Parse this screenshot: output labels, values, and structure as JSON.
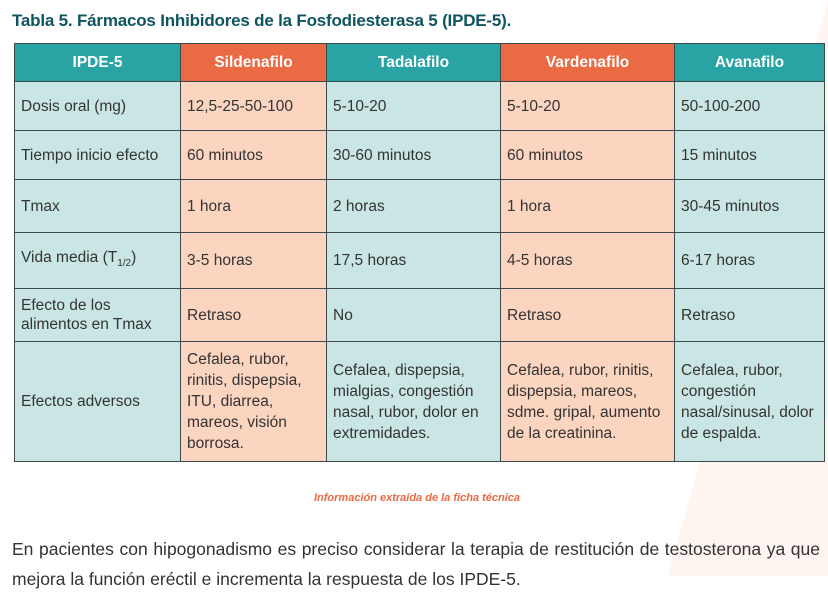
{
  "title": "Tabla 5. Fármacos Inhibidores de la Fosfodiesterasa 5 (IPDE-5).",
  "table": {
    "headers": [
      "IPDE-5",
      "Sildenafilo",
      "Tadalafilo",
      "Vardenafilo",
      "Avanafilo"
    ],
    "rows": [
      {
        "label": "Dosis oral (mg)",
        "values": [
          "12,5-25-50-100",
          "5-10-20",
          "5-10-20",
          "50-100-200"
        ]
      },
      {
        "label": "Tiempo inicio efecto",
        "values": [
          "60 minutos",
          "30-60 minutos",
          "60 minutos",
          "15 minutos"
        ]
      },
      {
        "label": "Tmax",
        "values": [
          "1 hora",
          "2 horas",
          "1 hora",
          "30-45 minutos"
        ]
      },
      {
        "label_main": "Vida media (T",
        "label_sub": "1/2",
        "label_end": ")",
        "values": [
          "3-5 horas",
          "17,5 horas",
          "4-5 horas",
          "6-17 horas"
        ]
      },
      {
        "label": "Efecto de los alimentos en Tmax",
        "values": [
          "Retraso",
          "No",
          "Retraso",
          "Retraso"
        ]
      },
      {
        "label": "Efectos adversos",
        "values": [
          "Cefalea, rubor, rinitis, dispepsia, ITU, diarrea, mareos, visión borrosa.",
          "Cefalea, dispepsia, mialgias, congestión nasal, rubor, dolor en extremidades.",
          "Cefalea, rubor, rinitis, dispepsia, mareos, sdme. gripal, aumento de la creatinina.",
          "Cefalea, rubor, congestión nasal/sinusal, dolor de espalda."
        ]
      }
    ]
  },
  "source_note": "Información extraída de la ficha técnica",
  "paragraph": "En pacientes con hipogonadismo es preciso considerar la terapia de restitución de testosterona ya que mejora la función eréctil e incrementa la respuesta de los IPDE-5.",
  "colors": {
    "teal_header": "#2aa3a4",
    "orange_header": "#ea6a43",
    "teal_cell": "#c9e6e5",
    "peach_cell": "#fbd5c0",
    "title": "#0f5560"
  }
}
